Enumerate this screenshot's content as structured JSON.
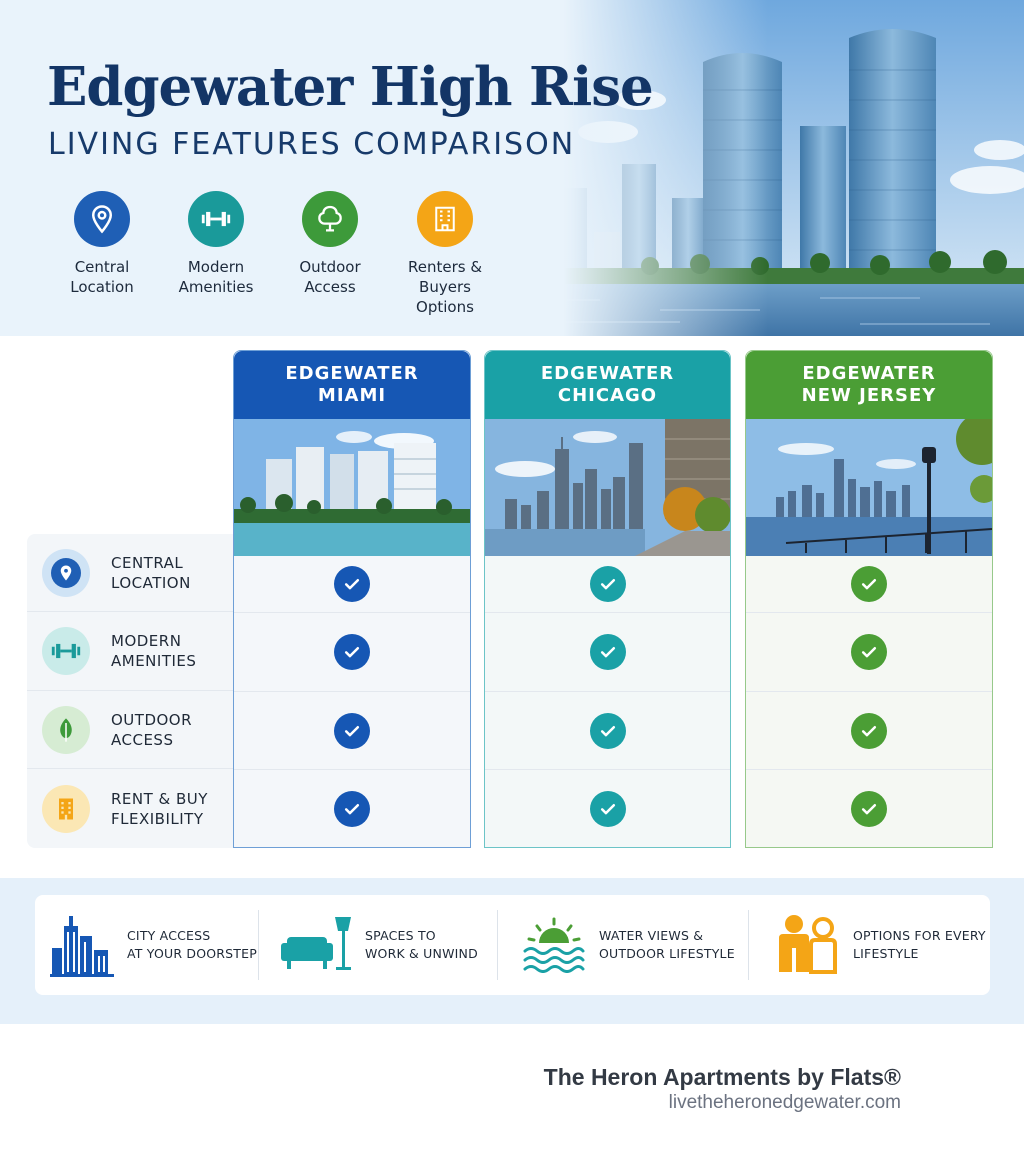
{
  "hero": {
    "title": "Edgewater High Rise",
    "subtitle": "LIVING FEATURES COMPARISON",
    "features": [
      {
        "label": "Central Location",
        "icon": "location-pin-icon",
        "color": "#1f5fb5"
      },
      {
        "label": "Modern Amenities",
        "icon": "dumbbell-icon",
        "color": "#1a9a9a"
      },
      {
        "label": "Outdoor Access",
        "icon": "tree-icon",
        "color": "#3d9a3a"
      },
      {
        "label": "Renters & Buyers Options",
        "icon": "building-icon",
        "color": "#f4a516"
      }
    ]
  },
  "table": {
    "columns": [
      {
        "line1": "EDGEWATER",
        "line2": "MIAMI",
        "color": "#1657b4",
        "image": "miami-skyline-image"
      },
      {
        "line1": "EDGEWATER",
        "line2": "CHICAGO",
        "color": "#1aa1a6",
        "image": "chicago-skyline-image"
      },
      {
        "line1": "EDGEWATER",
        "line2": "NEW JERSEY",
        "color": "#4b9e35",
        "image": "new-jersey-skyline-image"
      }
    ],
    "rows": [
      {
        "line1": "CENTRAL",
        "line2": "LOCATION",
        "icon": "location-pin-icon"
      },
      {
        "line1": "MODERN",
        "line2": "AMENITIES",
        "icon": "dumbbell-icon"
      },
      {
        "line1": "OUTDOOR",
        "line2": "ACCESS",
        "icon": "leaf-icon"
      },
      {
        "line1": "RENT & BUY",
        "line2": "FLEXIBILITY",
        "icon": "building-icon"
      }
    ],
    "checks": [
      [
        true,
        true,
        true
      ],
      [
        true,
        true,
        true
      ],
      [
        true,
        true,
        true
      ],
      [
        true,
        true,
        true
      ]
    ]
  },
  "strip": {
    "items": [
      {
        "line1": "CITY ACCESS",
        "line2": "AT YOUR DOORSTEP",
        "icon": "city-buildings-icon"
      },
      {
        "line1": "SPACES TO",
        "line2": "WORK & UNWIND",
        "icon": "sofa-lamp-icon"
      },
      {
        "line1": "WATER VIEWS &",
        "line2": "OUTDOOR LIFESTYLE",
        "icon": "sun-water-icon"
      },
      {
        "line1": "OPTIONS FOR EVERY",
        "line2": "LIFESTYLE",
        "icon": "people-icon"
      }
    ]
  },
  "footer": {
    "brand": "The Heron Apartments by Flats®",
    "url": "livetheheronedgewater.com"
  }
}
